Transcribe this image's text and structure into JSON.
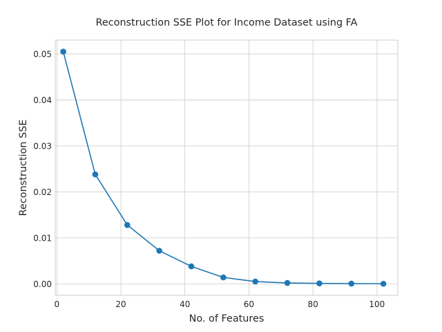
{
  "chart_data": {
    "type": "line",
    "title": "Reconstruction SSE Plot for Income Dataset using FA",
    "xlabel": "No. of Features",
    "ylabel": "Reconstruction SSE",
    "xlim": [
      -0.5,
      106.5
    ],
    "ylim": [
      -0.0025,
      0.053
    ],
    "xticks": [
      0,
      20,
      40,
      60,
      80,
      100
    ],
    "xtick_labels": [
      "0",
      "20",
      "40",
      "60",
      "80",
      "100"
    ],
    "yticks": [
      0.0,
      0.01,
      0.02,
      0.03,
      0.04,
      0.05
    ],
    "ytick_labels": [
      "0.00",
      "0.01",
      "0.02",
      "0.03",
      "0.04",
      "0.05"
    ],
    "grid": true,
    "series": [
      {
        "color": "#1f77b4",
        "marker": "circle",
        "x": [
          2,
          12,
          22,
          32,
          42,
          52,
          62,
          72,
          82,
          92,
          102
        ],
        "y": [
          0.0505,
          0.0238,
          0.0128,
          0.0072,
          0.0038,
          0.0014,
          0.0005,
          0.0002,
          0.0001,
          5e-05,
          2e-05
        ]
      }
    ]
  }
}
